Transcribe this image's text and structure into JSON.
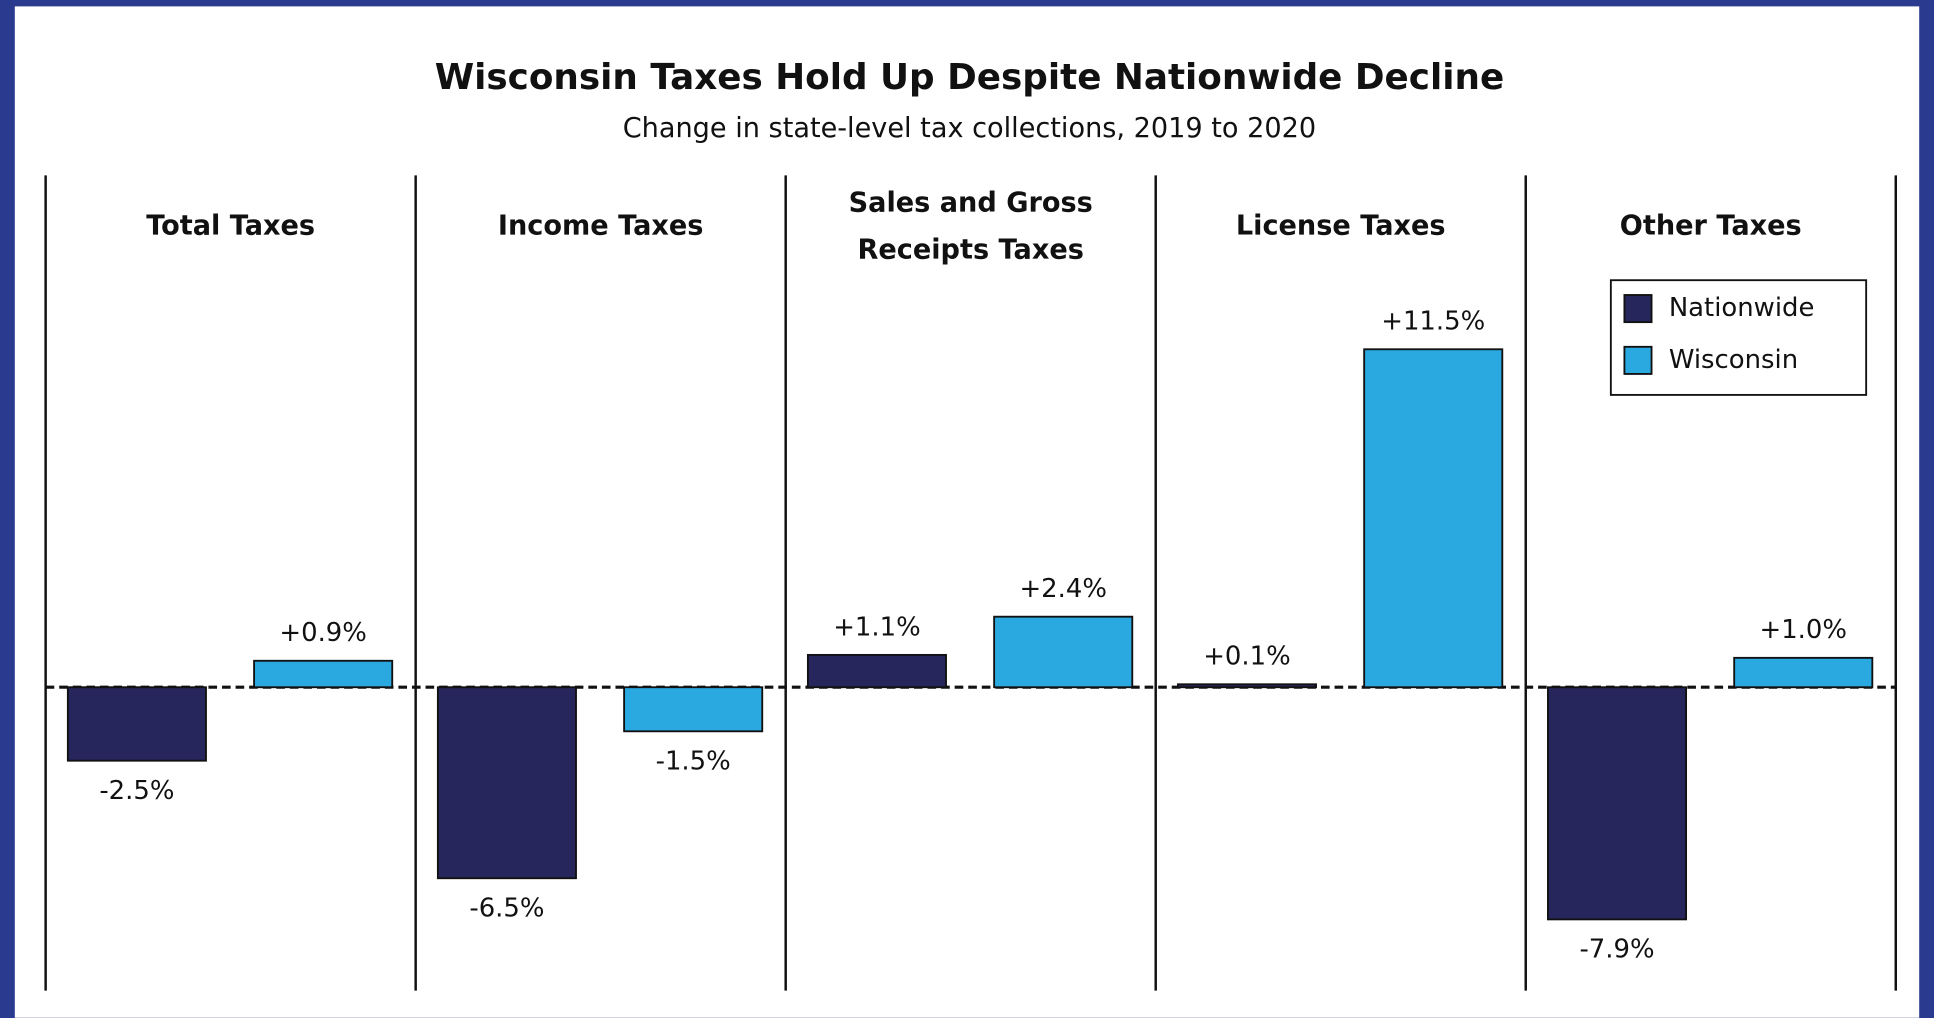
{
  "chart_data": {
    "type": "bar",
    "title": "Wisconsin Taxes Hold Up Despite Nationwide Decline",
    "subtitle": "Change in state-level tax collections, 2019 to 2020",
    "categories": [
      "Total Taxes",
      "Income Taxes",
      "Sales and Gross Receipts Taxes",
      "License Taxes",
      "Other Taxes"
    ],
    "series": [
      {
        "name": "Nationwide",
        "color": "#27265c",
        "values": [
          -2.5,
          -6.5,
          1.1,
          0.1,
          -7.9
        ],
        "value_labels": [
          "-2.5%",
          "-6.5%",
          "+1.1%",
          "+0.1%",
          "-7.9%"
        ]
      },
      {
        "name": "Wisconsin",
        "color": "#29a9df",
        "values": [
          0.9,
          -1.5,
          2.4,
          11.5,
          1.0
        ],
        "value_labels": [
          "+0.9%",
          "-1.5%",
          "+2.4%",
          "+11.5%",
          "+1.0%"
        ]
      }
    ],
    "legend": "upper right"
  }
}
